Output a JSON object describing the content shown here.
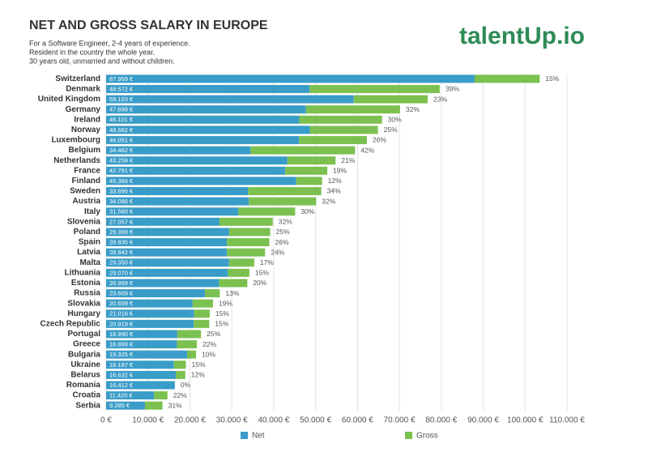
{
  "logo": "talentUp.io",
  "chart_data": {
    "type": "stacked_hbar",
    "title": "NET AND GROSS SALARY IN EUROPE",
    "subtitle": [
      "For a Software Engineer, 2-4 years of experience.",
      "Resident in the country the whole year.",
      "30 years old, unmarried and without children."
    ],
    "categories": [
      "Switzerland",
      "Denmark",
      "United Kingdom",
      "Germany",
      "Ireland",
      "Norway",
      "Luxembourg",
      "Belgium",
      "Netherlands",
      "France",
      "Finland",
      "Sweden",
      "Austria",
      "Italy",
      "Slovenia",
      "Poland",
      "Spain",
      "Latvia",
      "Malta",
      "Lithuania",
      "Estonia",
      "Russia",
      "Slovakia",
      "Hungary",
      "Czech Republic",
      "Portugal",
      "Greece",
      "Bulgaria",
      "Ukraine",
      "Belarus",
      "Romania",
      "Croatia",
      "Serbia"
    ],
    "series": [
      {
        "name": "Net",
        "color": "#3a9cc8",
        "values": [
          87959,
          48572,
          59103,
          47699,
          46101,
          48662,
          46051,
          34462,
          43259,
          42761,
          45366,
          33895,
          34086,
          31580,
          27057,
          29369,
          28835,
          28842,
          29350,
          29070,
          26959,
          23609,
          20659,
          21016,
          20919,
          16990,
          16899,
          19325,
          16187,
          16632,
          16412,
          11420,
          9285
        ],
        "value_labels": [
          "87.959 €",
          "48.572 €",
          "59.103 €",
          "47.699 €",
          "46.101 €",
          "48.662 €",
          "46.051 €",
          "34.462 €",
          "43.259 €",
          "42.761 €",
          "45.366 €",
          "33.895 €",
          "34.086 €",
          "31.580 €",
          "27.057 €",
          "29.369 €",
          "28.835 €",
          "28.842 €",
          "29.350 €",
          "29.070 €",
          "26.959 €",
          "23.609 €",
          "20.659 €",
          "21.016 €",
          "20.919 €",
          "16.990 €",
          "16.899 €",
          "19.325 €",
          "16.187 €",
          "16.632 €",
          "16.412 €",
          "11.420 €",
          "9.285 €"
        ]
      },
      {
        "name": "Gross",
        "color": "#7cc150",
        "values": [
          15520,
          31050,
          17650,
          22450,
          19760,
          16220,
          16180,
          24950,
          11500,
          10030,
          6190,
          17460,
          16040,
          13530,
          12730,
          9790,
          10130,
          9110,
          6010,
          5130,
          6740,
          3530,
          4850,
          3710,
          3690,
          5660,
          4770,
          2150,
          2860,
          2270,
          0,
          3220,
          4170
        ],
        "rate_labels": [
          "15%",
          "39%",
          "23%",
          "32%",
          "30%",
          "25%",
          "26%",
          "42%",
          "21%",
          "19%",
          "12%",
          "34%",
          "32%",
          "30%",
          "32%",
          "25%",
          "26%",
          "24%",
          "17%",
          "15%",
          "20%",
          "13%",
          "19%",
          "15%",
          "15%",
          "25%",
          "22%",
          "10%",
          "15%",
          "12%",
          "0%",
          "22%",
          "31%"
        ]
      }
    ],
    "xlim": [
      0,
      110000
    ],
    "xticks": [
      {
        "value": 0,
        "label": "0 €"
      },
      {
        "value": 10000,
        "label": "10.000 €"
      },
      {
        "value": 20000,
        "label": "20.000 €"
      },
      {
        "value": 30000,
        "label": "30.000 €"
      },
      {
        "value": 40000,
        "label": "40.000 €"
      },
      {
        "value": 50000,
        "label": "50.000 €"
      },
      {
        "value": 60000,
        "label": "60.000 €"
      },
      {
        "value": 70000,
        "label": "70.000 €"
      },
      {
        "value": 80000,
        "label": "80.000 €"
      },
      {
        "value": 90000,
        "label": "90.000 €"
      },
      {
        "value": 100000,
        "label": "100.000 €"
      },
      {
        "value": 110000,
        "label": "110.000 €"
      }
    ],
    "grid": true,
    "legend": "bottom"
  }
}
